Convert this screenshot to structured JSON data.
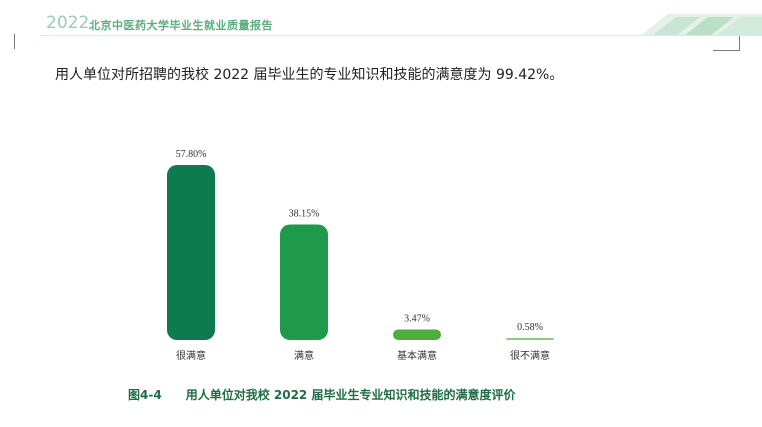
{
  "header": {
    "year": "2022",
    "title": "北京中医药大学毕业生就业质量报告"
  },
  "intro_text": "用人单位对所招聘的我校 2022 届毕业生的专业知识和技能的满意度为 99.42%。",
  "caption": {
    "number": "图4-4",
    "text": "用人单位对我校 2022 届毕业生专业知识和技能的满意度评价"
  },
  "chart_data": {
    "type": "bar",
    "categories": [
      "很满意",
      "满意",
      "基本满意",
      "很不满意"
    ],
    "values": [
      57.8,
      38.15,
      3.47,
      0.58
    ],
    "data_labels": [
      "57.80%",
      "38.15%",
      "3.47%",
      "0.58%"
    ],
    "colors": [
      "#0e7a4f",
      "#1f9a4c",
      "#4eae3d",
      "#8fcd7c"
    ],
    "title": "",
    "xlabel": "",
    "ylabel": "",
    "ylim": [
      0,
      60
    ],
    "grid": false,
    "legend": "none"
  }
}
